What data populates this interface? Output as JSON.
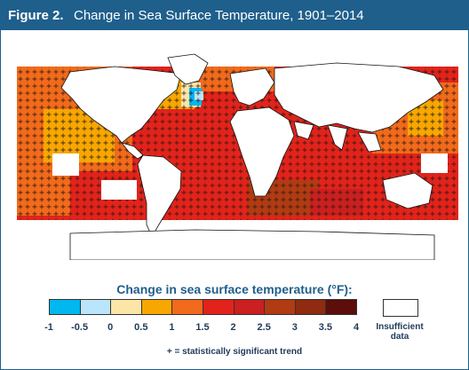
{
  "header": {
    "figure_label": "Figure 2.",
    "title": "Change in Sea Surface Temperature, 1901–2014"
  },
  "legend": {
    "title": "Change in sea surface temperature (°F):",
    "bins": [
      {
        "from": -1,
        "to": -0.5,
        "color": "#00b7f0"
      },
      {
        "from": -0.5,
        "to": 0,
        "color": "#b9e6fb"
      },
      {
        "from": 0,
        "to": 0.5,
        "color": "#fde5a8"
      },
      {
        "from": 0.5,
        "to": 1,
        "color": "#f7a700"
      },
      {
        "from": 1,
        "to": 1.5,
        "color": "#f26a1b"
      },
      {
        "from": 1.5,
        "to": 2,
        "color": "#e3231b"
      },
      {
        "from": 2,
        "to": 2.5,
        "color": "#cc1f1f"
      },
      {
        "from": 2.5,
        "to": 3,
        "color": "#b13b12"
      },
      {
        "from": 3,
        "to": 3.5,
        "color": "#8e2b10"
      },
      {
        "from": 3.5,
        "to": 4,
        "color": "#5d0d0a"
      }
    ],
    "tick_labels": [
      "-1",
      "-0.5",
      "0",
      "0.5",
      "1",
      "1.5",
      "2",
      "2.5",
      "3",
      "3.5",
      "4"
    ],
    "insufficient_label": "Insufficient data",
    "significance_note": "+ = statistically significant trend"
  }
}
